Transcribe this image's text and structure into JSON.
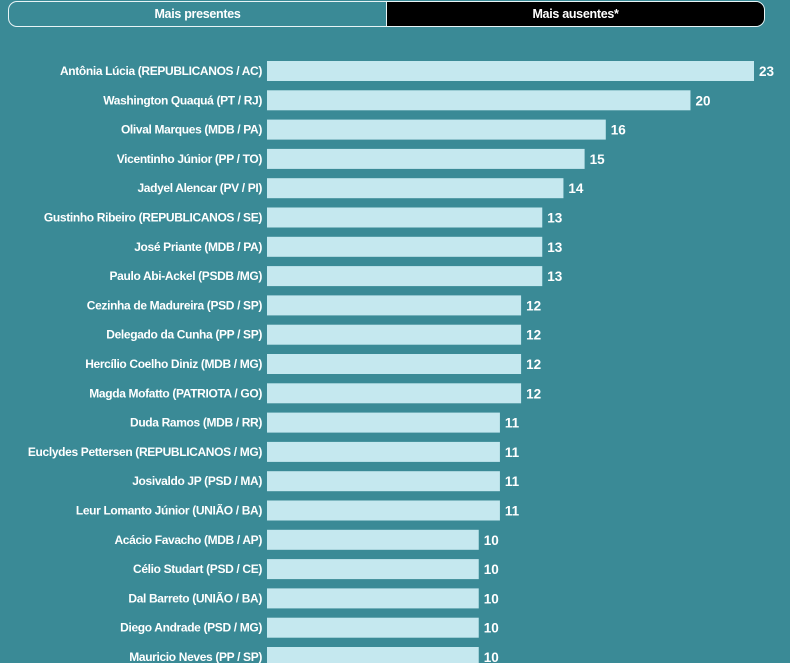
{
  "tabs": [
    {
      "label": "Mais presentes",
      "active": false
    },
    {
      "label": "Mais ausentes*",
      "active": true
    }
  ],
  "colors": {
    "background": "#3a8a96",
    "bar": "#c5e8ef",
    "active_tab": "#000000"
  },
  "chart_data": {
    "type": "bar",
    "orientation": "horizontal",
    "categories": [
      "Antônia Lúcia (REPUBLICANOS / AC)",
      "Washington Quaquá (PT / RJ)",
      "Olival Marques (MDB / PA)",
      "Vicentinho Júnior (PP / TO)",
      "Jadyel Alencar (PV / PI)",
      "Gustinho Ribeiro (REPUBLICANOS / SE)",
      "José Priante (MDB / PA)",
      "Paulo Abi-Ackel (PSDB /MG)",
      "Cezinha de Madureira (PSD / SP)",
      "Delegado da Cunha (PP / SP)",
      "Hercílio Coelho Diniz (MDB / MG)",
      "Magda Mofatto (PATRIOTA / GO)",
      "Duda Ramos (MDB / RR)",
      "Euclydes Pettersen (REPUBLICANOS / MG)",
      "Josivaldo JP (PSD / MA)",
      "Leur Lomanto Júnior (UNIÃO / BA)",
      "Acácio Favacho (MDB / AP)",
      "Célio Studart (PSD / CE)",
      "Dal Barreto (UNIÃO / BA)",
      "Diego Andrade (PSD / MG)",
      "Mauricio Neves (PP / SP)"
    ],
    "values": [
      23,
      20,
      16,
      15,
      14,
      13,
      13,
      13,
      12,
      12,
      12,
      12,
      11,
      11,
      11,
      11,
      10,
      10,
      10,
      10,
      10
    ],
    "xlim": [
      0,
      23
    ]
  }
}
